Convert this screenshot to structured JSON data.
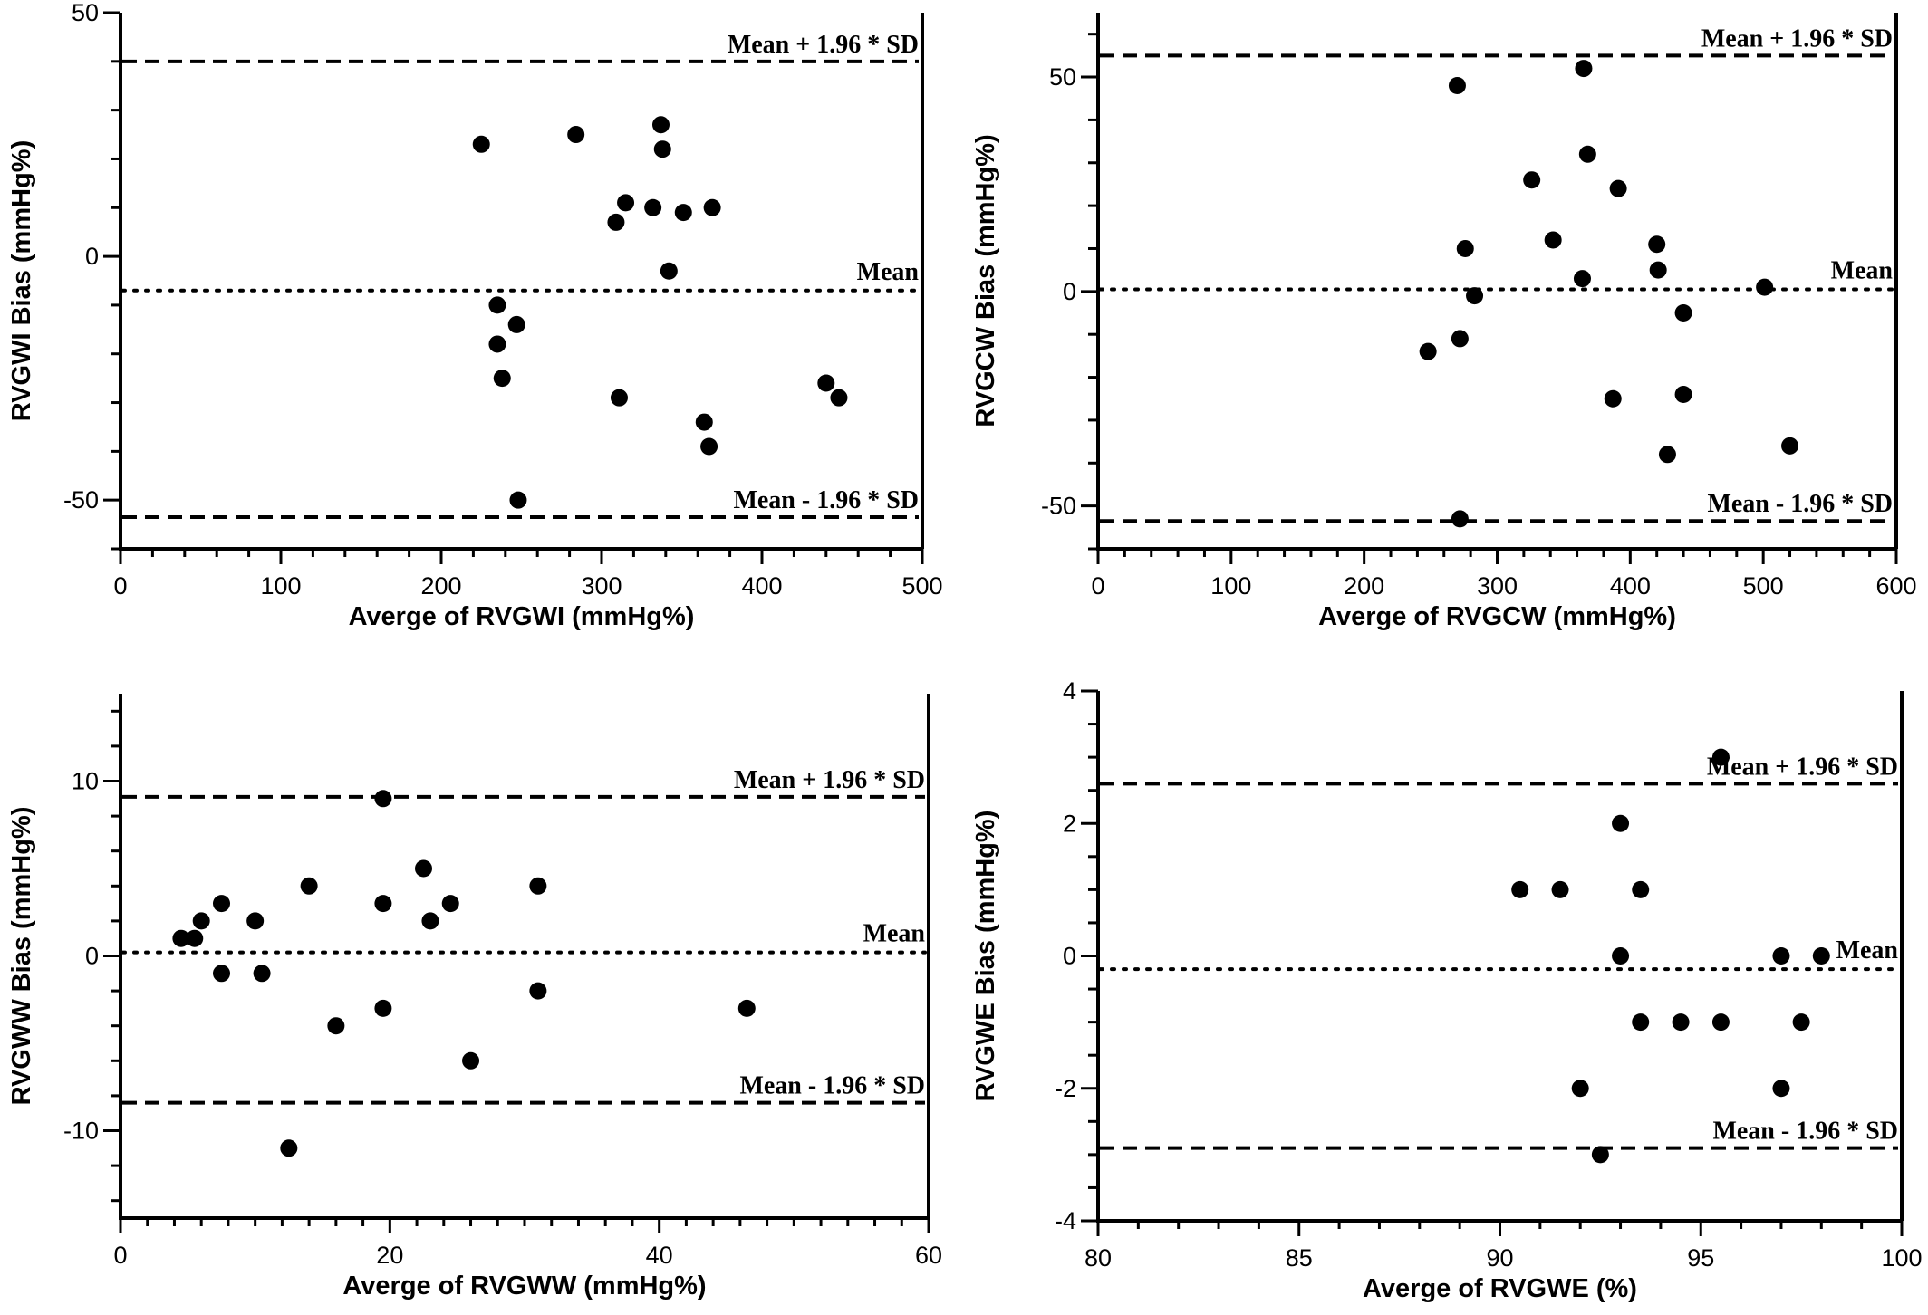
{
  "chart_data": [
    {
      "type": "scatter",
      "title": "",
      "xlabel": "Averge of RVGWI (mmHg%)",
      "ylabel": "RVGWI Bias (mmHg%)",
      "xlim": [
        0,
        500
      ],
      "ylim": [
        -60,
        50
      ],
      "xticks": [
        "0",
        "100",
        "200",
        "300",
        "400",
        "500"
      ],
      "yticks": [
        "-50",
        "0",
        "50"
      ],
      "xtick_values": [
        0,
        100,
        200,
        300,
        400,
        500
      ],
      "ytick_values": [
        -50,
        0,
        50
      ],
      "x_minor_step": 20,
      "y_minor_step": 10,
      "grid": false,
      "lines": {
        "upper": 40,
        "mean": -7,
        "lower": -53.5
      },
      "line_labels": {
        "upper": "Mean + 1.96 * SD",
        "mean": "Mean",
        "lower": "Mean - 1.96 * SD"
      },
      "x": [
        225,
        235,
        235,
        238,
        247,
        248,
        284,
        309,
        311,
        315,
        332,
        337,
        338,
        342,
        351,
        364,
        367,
        369,
        440,
        448
      ],
      "y": [
        23,
        -10,
        -18,
        -25,
        -14,
        -50,
        25,
        7,
        -29,
        11,
        10,
        27,
        22,
        -3,
        9,
        -34,
        -39,
        10,
        -26,
        -29
      ]
    },
    {
      "type": "scatter",
      "title": "",
      "xlabel": "Averge of RVGCW (mmHg%)",
      "ylabel": "RVGCW Bias (mmHg%)",
      "xlim": [
        0,
        600
      ],
      "ylim": [
        -60,
        65
      ],
      "xticks": [
        "0",
        "100",
        "200",
        "300",
        "400",
        "500",
        "600"
      ],
      "yticks": [
        "-50",
        "0",
        "50"
      ],
      "xtick_values": [
        0,
        100,
        200,
        300,
        400,
        500,
        600
      ],
      "ytick_values": [
        -50,
        0,
        50
      ],
      "x_minor_step": 20,
      "y_minor_step": 10,
      "grid": false,
      "lines": {
        "upper": 55,
        "mean": 0.5,
        "lower": -53.5
      },
      "line_labels": {
        "upper": "Mean + 1.96 * SD",
        "mean": "Mean",
        "lower": "Mean - 1.96 * SD"
      },
      "x": [
        248,
        270,
        272,
        272,
        276,
        283,
        326,
        342,
        364,
        365,
        368,
        387,
        391,
        420,
        421,
        428,
        440,
        440,
        501,
        520
      ],
      "y": [
        -14,
        48,
        -11,
        -53,
        10,
        -1,
        26,
        12,
        3,
        52,
        32,
        -25,
        24,
        11,
        5,
        -38,
        -24,
        -5,
        1,
        -36
      ]
    },
    {
      "type": "scatter",
      "title": "",
      "xlabel": "Averge of RVGWW (mmHg%)",
      "ylabel": "RVGWW Bias (mmHg%)",
      "xlim": [
        0,
        60
      ],
      "ylim": [
        -15,
        15
      ],
      "xticks": [
        "0",
        "20",
        "40",
        "60"
      ],
      "yticks": [
        "-10",
        "0",
        "10"
      ],
      "xtick_values": [
        0,
        20,
        40,
        60
      ],
      "ytick_values": [
        -10,
        0,
        10
      ],
      "x_minor_step": 2,
      "y_minor_step": 2,
      "grid": false,
      "lines": {
        "upper": 9.1,
        "mean": 0.2,
        "lower": -8.4
      },
      "line_labels": {
        "upper": "Mean + 1.96 * SD",
        "mean": "Mean",
        "lower": "Mean - 1.96 * SD"
      },
      "x": [
        4.5,
        5.5,
        6,
        7.5,
        7.5,
        10,
        10.5,
        12.5,
        14,
        16,
        19.5,
        19.5,
        19.5,
        22.5,
        23,
        24.5,
        26,
        31,
        31,
        46.5
      ],
      "y": [
        1,
        1,
        2,
        3,
        -1,
        2,
        -1,
        -11,
        4,
        -4,
        9,
        3,
        -3,
        5,
        2,
        3,
        -6,
        4,
        -2,
        -3
      ]
    },
    {
      "type": "scatter",
      "title": "",
      "xlabel": "Averge of RVGWE (%)",
      "ylabel": "RVGWE Bias (mmHg%)",
      "xlim": [
        80,
        100
      ],
      "ylim": [
        -4,
        4
      ],
      "xticks": [
        "80",
        "85",
        "90",
        "95",
        "100"
      ],
      "yticks": [
        "-4",
        "-2",
        "0",
        "2",
        "4"
      ],
      "xtick_values": [
        80,
        85,
        90,
        95,
        100
      ],
      "ytick_values": [
        -4,
        -2,
        0,
        2,
        4
      ],
      "x_minor_step": 1,
      "y_minor_step": 0.5,
      "grid": false,
      "lines": {
        "upper": 2.6,
        "mean": -0.2,
        "lower": -2.9
      },
      "line_labels": {
        "upper": "Mean + 1.96 * SD",
        "mean": "Mean",
        "lower": "Mean - 1.96 * SD"
      },
      "x": [
        90.5,
        91.5,
        92,
        92.5,
        93,
        93,
        93.5,
        93.5,
        94.5,
        95.5,
        95.5,
        97,
        97,
        97.5,
        98
      ],
      "y": [
        1,
        1,
        -2,
        -3,
        2,
        0,
        1,
        -1,
        -1,
        -1,
        3,
        0,
        -2,
        -1,
        0
      ]
    }
  ]
}
